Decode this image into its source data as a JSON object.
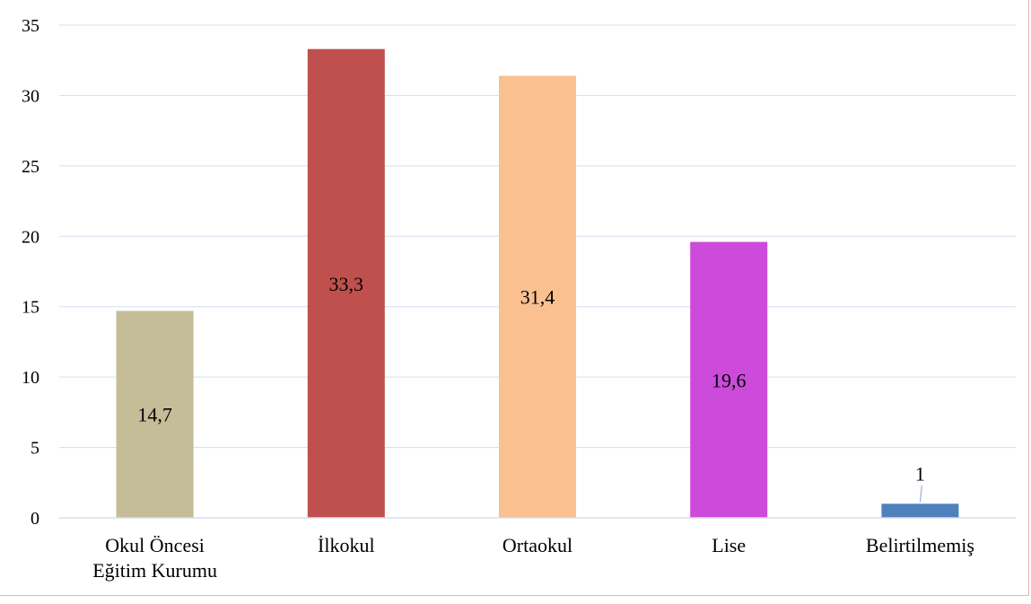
{
  "chart_data": {
    "type": "bar",
    "title": "",
    "xlabel": "",
    "ylabel": "",
    "ylim": [
      0,
      35
    ],
    "yticks": [
      0,
      5,
      10,
      15,
      20,
      25,
      30,
      35
    ],
    "grid": true,
    "legend": "none",
    "categories": [
      [
        "Okul Öncesi",
        "Eğitim Kurumu"
      ],
      [
        "İlkokul"
      ],
      [
        "Ortaokul"
      ],
      [
        "Lise"
      ],
      [
        "Belirtilmemiş"
      ]
    ],
    "values": [
      14.7,
      33.3,
      31.4,
      19.6,
      1
    ],
    "data_labels": [
      "14,7",
      "33,3",
      "31,4",
      "19,6",
      "1"
    ],
    "colors": [
      "#c4bd97",
      "#c0504d",
      "#fac090",
      "#cc4bdb",
      "#4f81bd"
    ]
  }
}
